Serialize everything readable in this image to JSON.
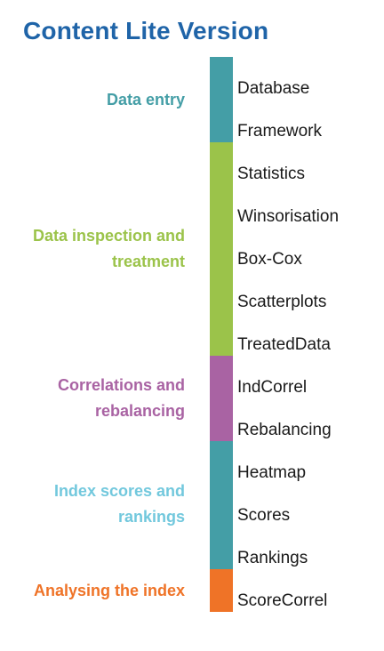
{
  "title": "Content Lite Version",
  "colors": {
    "title": "#1f64a8",
    "data_entry": "#449ea6",
    "inspection": "#9bc34a",
    "correlations": "#a963a3",
    "index_bar": "#449ea6",
    "index_label": "#72c8dd",
    "analysing": "#ef7327"
  },
  "groups": [
    {
      "id": "data_entry",
      "label": "Data entry",
      "items": [
        "Database",
        "Framework"
      ]
    },
    {
      "id": "inspection",
      "label": "Data inspection and treatment",
      "items": [
        "Statistics",
        "Winsorisation",
        "Box-Cox",
        "Scatterplots",
        "TreatedData"
      ]
    },
    {
      "id": "correlations",
      "label": "Correlations and rebalancing",
      "items": [
        "IndCorrel",
        "Rebalancing"
      ]
    },
    {
      "id": "index",
      "label": "Index scores and rankings",
      "items": [
        "Heatmap",
        "Scores",
        "Rankings"
      ]
    },
    {
      "id": "analysing",
      "label": "Analysing the index",
      "items": [
        "ScoreCorrel"
      ]
    }
  ]
}
